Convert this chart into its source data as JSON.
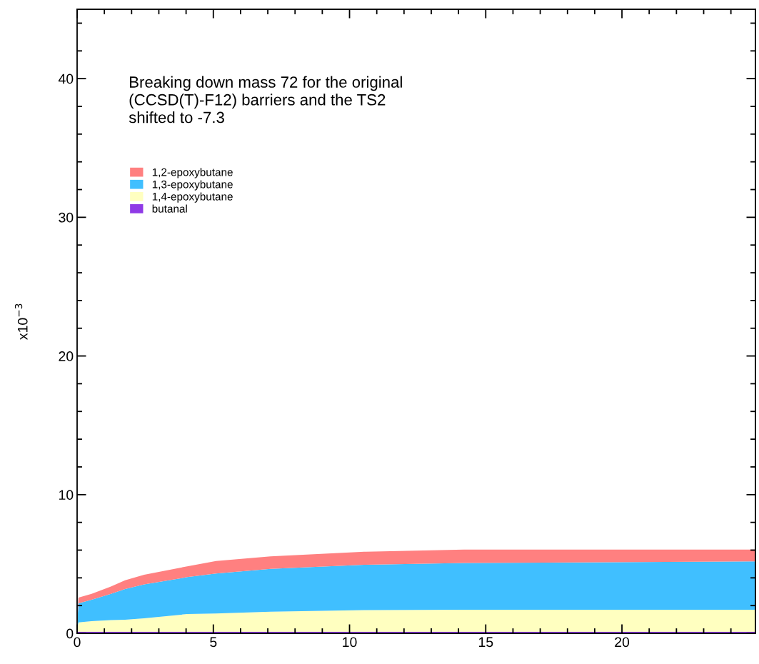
{
  "chart_data": {
    "type": "area",
    "stacked": true,
    "title": "Breaking down mass 72 for the original\n(CCSD(T)-F12) barriers and the TS2\nshifted to -7.3",
    "ylabel": "x10$^{−3}$",
    "x": [
      0,
      0.05,
      0.53,
      1.24,
      1.76,
      2.46,
      4.04,
      5.1,
      7.1,
      10.6,
      14.2,
      24.9
    ],
    "series": [
      {
        "name": "butanal",
        "color": "#8f3ae6",
        "values": [
          0.12,
          0.12,
          0.12,
          0.12,
          0.12,
          0.12,
          0.12,
          0.12,
          0.12,
          0.12,
          0.12,
          0.12
        ]
      },
      {
        "name": "1,4-epoxybutane",
        "color": "#ffffc0",
        "values": [
          0.18,
          0.67,
          0.76,
          0.84,
          0.86,
          0.96,
          1.27,
          1.31,
          1.44,
          1.56,
          1.58,
          1.58
        ]
      },
      {
        "name": "1,3-epoxybutane",
        "color": "#40bfff",
        "values": [
          0.4,
          1.37,
          1.54,
          1.89,
          2.22,
          2.45,
          2.66,
          2.88,
          3.09,
          3.27,
          3.37,
          3.49
        ]
      },
      {
        "name": "1,2-epoxybutane",
        "color": "#ff8080",
        "values": [
          0.3,
          0.42,
          0.43,
          0.52,
          0.63,
          0.7,
          0.78,
          0.9,
          0.9,
          0.94,
          0.97,
          0.85
        ]
      }
    ],
    "xlim": [
      0,
      24.9
    ],
    "xticks": [
      0,
      5,
      10,
      15,
      20
    ],
    "ylim": [
      0,
      45
    ],
    "yticks": [
      0,
      10,
      20,
      30,
      40
    ],
    "grid": false,
    "legend": "top left"
  }
}
